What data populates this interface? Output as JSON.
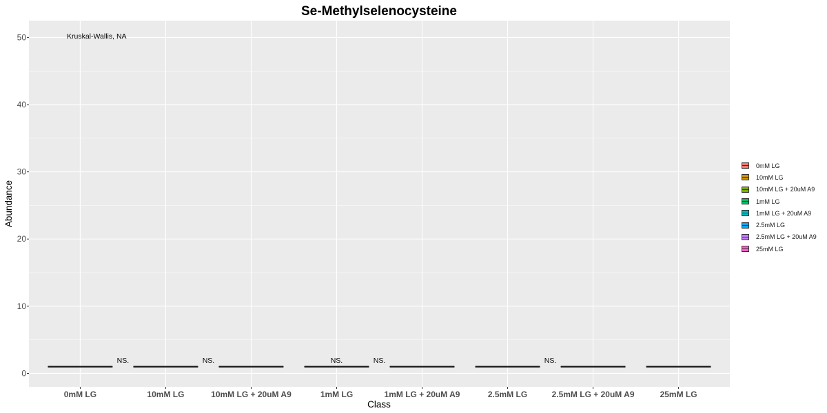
{
  "chart_data": {
    "type": "box",
    "title": "Se-Methylselenocysteine",
    "xlabel": "Class",
    "ylabel": "Abundance",
    "ylim": [
      -2,
      52.5
    ],
    "yticks": [
      0,
      10,
      20,
      30,
      40,
      50
    ],
    "categories": [
      "0mM LG",
      "10mM LG",
      "10mM LG + 20uM A9",
      "1mM LG",
      "1mM LG + 20uM A9",
      "2.5mM LG",
      "2.5mM LG + 20uM A9",
      "25mM LG"
    ],
    "values": [
      1,
      1,
      1,
      1,
      1,
      1,
      1,
      1
    ],
    "colors": [
      "#F8766D",
      "#CD9600",
      "#7CAE00",
      "#00BE67",
      "#00BFC4",
      "#00A9FF",
      "#C77CFF",
      "#FF61CC"
    ],
    "annotation": "Kruskal-Wallis, NA",
    "significance": [
      {
        "label": "NS.",
        "position": 1.5,
        "y": 2
      },
      {
        "label": "NS.",
        "position": 2.5,
        "y": 2
      },
      {
        "label": "NS.",
        "position": 4.0,
        "y": 2
      },
      {
        "label": "NS.",
        "position": 4.5,
        "y": 2
      },
      {
        "label": "NS.",
        "position": 6.5,
        "y": 2
      }
    ],
    "grid": true,
    "legend": "right"
  }
}
